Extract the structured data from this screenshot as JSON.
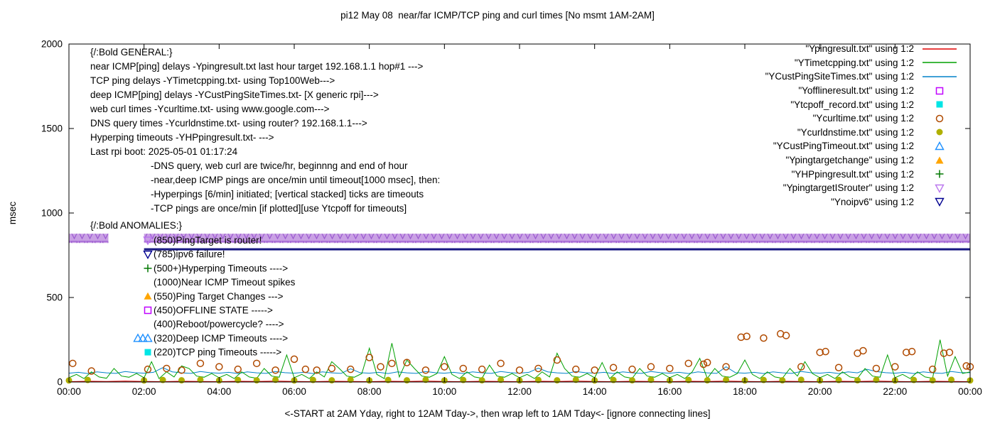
{
  "chart_data": {
    "type": "line",
    "title": "pi12 May 08  near/far ICMP/TCP ping and curl times [No msmt 1AM-2AM]",
    "xlabel": "<-START at 2AM Yday, right to 12AM Tday->, then wrap left to 1AM Tday<- [ignore connecting lines]",
    "ylabel": "msec",
    "xlim": [
      0,
      24
    ],
    "ylim": [
      0,
      2000
    ],
    "grid": false,
    "legend_position": "top-right",
    "x_ticks": [
      "00:00",
      "02:00",
      "04:00",
      "06:00",
      "08:00",
      "10:00",
      "12:00",
      "14:00",
      "16:00",
      "18:00",
      "20:00",
      "22:00",
      "00:00"
    ],
    "x_tick_hours": [
      0,
      2,
      4,
      6,
      8,
      10,
      12,
      14,
      16,
      18,
      20,
      22,
      24
    ],
    "y_ticks": [
      0,
      500,
      1000,
      1500,
      2000
    ],
    "series": [
      {
        "name": "YpingtargetISrouter",
        "style": "band",
        "color": "#c9a0e4",
        "edge_color": "#9b59d0",
        "y": 850,
        "segments": [
          [
            0,
            1.05
          ],
          [
            2,
            24
          ]
        ]
      },
      {
        "name": "Ynoipv6",
        "style": "hline",
        "color": "#151580",
        "y": 785,
        "segments": [
          [
            2,
            24
          ]
        ]
      },
      {
        "name": "Ypingresult.txt",
        "style": "line",
        "color": "#e00000",
        "x0": 0,
        "dx": 0.5,
        "values": [
          2,
          4,
          3,
          5,
          3,
          2,
          4,
          3,
          2,
          4,
          3,
          5,
          3,
          2,
          4,
          3,
          2,
          4,
          3,
          5,
          3,
          2,
          4,
          3,
          2,
          4,
          3,
          5,
          3,
          2,
          4,
          3,
          2,
          4,
          3,
          5,
          3,
          2,
          4,
          3,
          2,
          4,
          3,
          5,
          3,
          2,
          4,
          3,
          2
        ]
      },
      {
        "name": "YCustPingSiteTimes.txt",
        "style": "line",
        "color": "#0082c8",
        "x0": 0,
        "dx": 0.25,
        "values": [
          52,
          57,
          50,
          60,
          54,
          51,
          62,
          55,
          52,
          57,
          85,
          60,
          54,
          51,
          62,
          55,
          52,
          57,
          50,
          60,
          54,
          51,
          62,
          55,
          52,
          57,
          50,
          60,
          54,
          51,
          78,
          55,
          52,
          57,
          50,
          60,
          54,
          51,
          62,
          55,
          52,
          57,
          50,
          60,
          54,
          51,
          62,
          55,
          52,
          57,
          82,
          60,
          54,
          51,
          62,
          55,
          52,
          57,
          50,
          60,
          54,
          51,
          62,
          55,
          52,
          57,
          50,
          60,
          54,
          51,
          90,
          55,
          52,
          57,
          50,
          60,
          54,
          51,
          62,
          55,
          52,
          57,
          50,
          60,
          54,
          75,
          62,
          55,
          52,
          57,
          50,
          60,
          54,
          51,
          62,
          55,
          55
        ]
      },
      {
        "name": "YTimetcpping.txt",
        "style": "line",
        "color": "#00a000",
        "x0": 0,
        "dx": 0.2,
        "values": [
          25,
          45,
          20,
          60,
          30,
          22,
          80,
          35,
          28,
          50,
          25,
          120,
          20,
          60,
          30,
          95,
          80,
          35,
          28,
          50,
          25,
          45,
          20,
          60,
          30,
          22,
          80,
          35,
          28,
          160,
          25,
          45,
          20,
          60,
          30,
          120,
          80,
          35,
          28,
          50,
          200,
          45,
          20,
          230,
          30,
          130,
          80,
          35,
          28,
          50,
          150,
          45,
          20,
          60,
          30,
          22,
          100,
          35,
          28,
          50,
          25,
          45,
          20,
          60,
          30,
          170,
          80,
          35,
          28,
          50,
          25,
          115,
          20,
          60,
          30,
          22,
          80,
          35,
          28,
          50,
          25,
          45,
          20,
          60,
          140,
          22,
          80,
          35,
          28,
          50,
          130,
          45,
          20,
          60,
          30,
          22,
          80,
          35,
          120,
          50,
          25,
          45,
          20,
          60,
          30,
          22,
          80,
          35,
          28,
          160,
          25,
          45,
          20,
          60,
          30,
          22,
          250,
          35,
          150,
          50,
          60
        ]
      },
      {
        "name": "Ycurltime.txt",
        "style": "circle-open",
        "color": "#b04a00",
        "points": [
          [
            0.1,
            110
          ],
          [
            0.6,
            65
          ],
          [
            2.1,
            75
          ],
          [
            2.6,
            80
          ],
          [
            3.0,
            70
          ],
          [
            3.5,
            110
          ],
          [
            4.0,
            90
          ],
          [
            4.5,
            75
          ],
          [
            5.0,
            110
          ],
          [
            5.5,
            70
          ],
          [
            6.0,
            135
          ],
          [
            6.3,
            75
          ],
          [
            6.6,
            70
          ],
          [
            7.0,
            80
          ],
          [
            7.5,
            75
          ],
          [
            8.0,
            145
          ],
          [
            8.3,
            90
          ],
          [
            8.6,
            110
          ],
          [
            9.0,
            115
          ],
          [
            9.5,
            70
          ],
          [
            10.0,
            90
          ],
          [
            10.5,
            80
          ],
          [
            11.0,
            75
          ],
          [
            11.5,
            110
          ],
          [
            12.0,
            70
          ],
          [
            12.5,
            80
          ],
          [
            13.0,
            130
          ],
          [
            13.5,
            75
          ],
          [
            14.0,
            70
          ],
          [
            14.5,
            85
          ],
          [
            15.0,
            75
          ],
          [
            15.5,
            90
          ],
          [
            16.0,
            80
          ],
          [
            16.5,
            110
          ],
          [
            16.9,
            105
          ],
          [
            17.0,
            115
          ],
          [
            17.5,
            90
          ],
          [
            17.9,
            265
          ],
          [
            18.05,
            270
          ],
          [
            18.5,
            260
          ],
          [
            18.95,
            285
          ],
          [
            19.1,
            275
          ],
          [
            19.5,
            90
          ],
          [
            20.0,
            175
          ],
          [
            20.15,
            180
          ],
          [
            20.5,
            85
          ],
          [
            21.0,
            170
          ],
          [
            21.15,
            185
          ],
          [
            21.5,
            80
          ],
          [
            22.0,
            90
          ],
          [
            22.3,
            175
          ],
          [
            22.45,
            180
          ],
          [
            23.0,
            75
          ],
          [
            23.3,
            170
          ],
          [
            23.45,
            175
          ],
          [
            23.9,
            95
          ],
          [
            24.0,
            90
          ]
        ]
      },
      {
        "name": "Ycurldnstime.txt",
        "style": "circle-filled",
        "color": "#b0b000",
        "x0": 0,
        "dx": 0.5,
        "values": [
          9,
          12,
          null,
          null,
          9,
          12,
          10,
          13,
          9,
          12,
          10,
          13,
          9,
          12,
          10,
          13,
          9,
          12,
          10,
          13,
          9,
          12,
          10,
          13,
          9,
          12,
          10,
          13,
          9,
          12,
          10,
          13,
          9,
          12,
          10,
          13,
          9,
          12,
          10,
          13,
          9,
          12,
          10,
          13,
          9,
          12,
          10,
          13,
          9
        ]
      }
    ]
  },
  "legend": {
    "items": [
      {
        "label": "\"Ypingresult.txt\" using 1:2",
        "style": "line",
        "color": "#e00000"
      },
      {
        "label": "\"YTimetcpping.txt\" using 1:2",
        "style": "line",
        "color": "#00a000"
      },
      {
        "label": "\"YCustPingSiteTimes.txt\" using 1:2",
        "style": "line",
        "color": "#0082c8"
      },
      {
        "label": "\"Yofflineresult.txt\" using 1:2",
        "style": "square-open",
        "color": "#c000ff"
      },
      {
        "label": "\"Ytcpoff_record.txt\" using 1:2",
        "style": "square-filled",
        "color": "#00e5e5"
      },
      {
        "label": "\"Ycurltime.txt\" using 1:2",
        "style": "circle-open",
        "color": "#b04a00"
      },
      {
        "label": "\"Ycurldnstime.txt\" using 1:2",
        "style": "circle-filled",
        "color": "#b0b000"
      },
      {
        "label": "\"YCustPingTimeout.txt\" using 1:2",
        "style": "triangle-up-open",
        "color": "#1e90ff"
      },
      {
        "label": "\"Ypingtargetchange\" using 1:2",
        "style": "triangle-up-filled",
        "color": "#ffa500"
      },
      {
        "label": "\"YHPpingresult.txt\" using 1:2",
        "style": "plus",
        "color": "#007700"
      },
      {
        "label": "\"YpingtargetISrouter\" using 1:2",
        "style": "triangle-down-open",
        "color": "#bb77ee"
      },
      {
        "label": "\"Ynoipv6\" using 1:2",
        "style": "triangle-down-open",
        "color": "#000090"
      }
    ]
  },
  "notes": {
    "general": [
      {
        "text": "{/:Bold GENERAL:}",
        "indent": 0
      },
      {
        "text": "near ICMP[ping] delays -Ypingresult.txt last hour target 192.168.1.1 hop#1 --->",
        "indent": 0
      },
      {
        "text": "TCP ping delays -YTimetcpping.txt- using Top100Web--->",
        "indent": 0
      },
      {
        "text": "deep ICMP[ping] delays -YCustPingSiteTimes.txt- [X generic rpi]--->",
        "indent": 0
      },
      {
        "text": "web curl times -Ycurltime.txt- using www.google.com--->",
        "indent": 0
      },
      {
        "text": "DNS query times -Ycurldnstime.txt- using router? 192.168.1.1--->",
        "indent": 0
      },
      {
        "text": "Hyperping timeouts -YHPpingresult.txt- --->",
        "indent": 0
      },
      {
        "text": "Last rpi boot: 2025-05-01 01:17:24",
        "indent": 0
      },
      {
        "text": "-DNS query, web curl are twice/hr, beginnng and end of hour",
        "indent": 1
      },
      {
        "text": "-near,deep ICMP pings are once/min until timeout[1000 msec], then:",
        "indent": 1
      },
      {
        "text": "-Hyperpings [6/min] initiated; [vertical stacked] ticks are timeouts",
        "indent": 1
      },
      {
        "text": "-TCP pings are once/min [if plotted][use Ytcpoff for timeouts]",
        "indent": 1
      }
    ],
    "anomalies_header": "{/:Bold ANOMALIES:}",
    "anomalies": [
      {
        "text": "(850)PingTarget is router!",
        "marker": "triangle-down-open",
        "color": "#bb77ee",
        "count": 1
      },
      {
        "text": "(785)ipv6 failure!",
        "marker": "triangle-down-open",
        "color": "#000090",
        "count": 1
      },
      {
        "text": "(500+)Hyperping Timeouts ---->",
        "marker": "plus",
        "color": "#007700",
        "count": 1
      },
      {
        "text": "(1000)Near ICMP Timeout spikes",
        "marker": "none",
        "color": "",
        "count": 0
      },
      {
        "text": "(550)Ping Target Changes --->",
        "marker": "triangle-up-filled",
        "color": "#ffa500",
        "count": 1
      },
      {
        "text": "(450)OFFLINE STATE ----->",
        "marker": "square-open",
        "color": "#c000ff",
        "count": 1
      },
      {
        "text": "(400)Reboot/powercycle? ---->",
        "marker": "none",
        "color": "",
        "count": 0
      },
      {
        "text": "(320)Deep ICMP Timeouts ---->",
        "marker": "triangle-up-open",
        "color": "#1e90ff",
        "count": 3
      },
      {
        "text": "(220)TCP ping Timeouts ----->",
        "marker": "square-filled",
        "color": "#00e5e5",
        "count": 1
      }
    ]
  }
}
